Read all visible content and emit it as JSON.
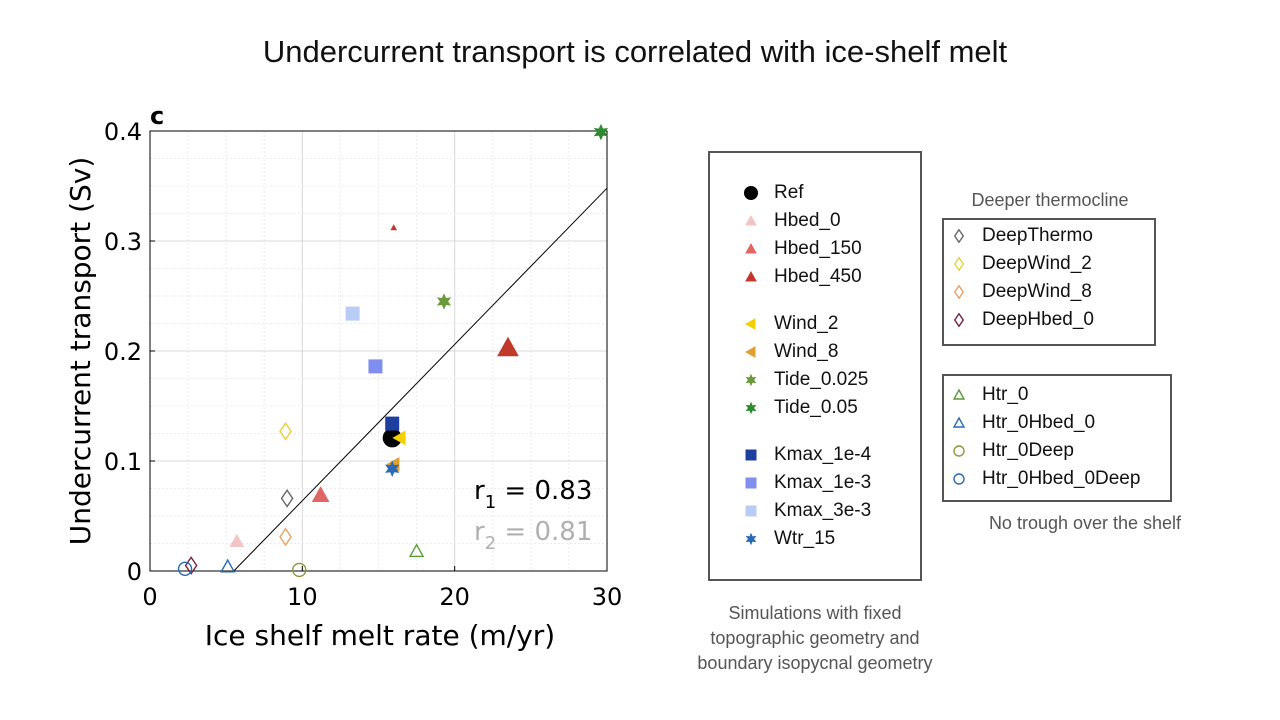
{
  "title": "Undercurrent transport is correlated with ice-shelf melt",
  "chart_data": {
    "type": "scatter",
    "panel_label": "c",
    "xlabel": "Ice shelf melt rate (m/yr)",
    "ylabel": "Undercurrent transport (Sv)",
    "xlim": [
      0,
      30
    ],
    "ylim": [
      0,
      0.4
    ],
    "xticks": [
      0,
      10,
      20,
      30
    ],
    "yticks": [
      0,
      0.1,
      0.2,
      0.3,
      0.4
    ],
    "xtick_labels": [
      "0",
      "10",
      "20",
      "30"
    ],
    "ytick_labels": [
      "0",
      "0.1",
      "0.2",
      "0.3",
      "0.4"
    ],
    "grid": true,
    "fit_line": {
      "x": [
        5.5,
        30
      ],
      "y": [
        0,
        0.348
      ]
    },
    "annotations": {
      "r1": {
        "prefix": "r",
        "sub": "1",
        "text": " = 0.83",
        "color": "#000000"
      },
      "r2": {
        "prefix": "r",
        "sub": "2",
        "text": " = 0.81",
        "color": "#b0b0b0"
      }
    },
    "series": [
      {
        "name": "Ref",
        "marker": "circle",
        "color": "#000000",
        "fill": true,
        "x": [
          15.9
        ],
        "y": [
          0.121
        ]
      },
      {
        "name": "Hbed_0",
        "marker": "triangle",
        "color": "#f2c4c4",
        "fill": true,
        "x": [
          5.7
        ],
        "y": [
          0.027
        ]
      },
      {
        "name": "Hbed_150",
        "marker": "triangle",
        "color": "#e06666",
        "fill": true,
        "x": [
          11.2
        ],
        "y": [
          0.069
        ]
      },
      {
        "name": "Hbed_450",
        "marker": "triangle",
        "color": "#c0392b",
        "fill": true,
        "x": [
          23.5,
          16.0
        ],
        "y": [
          0.203,
          0.312
        ]
      },
      {
        "name": "Wind_2",
        "marker": "triangle-left",
        "color": "#f5d000",
        "fill": true,
        "x": [
          16.4
        ],
        "y": [
          0.121
        ]
      },
      {
        "name": "Wind_8",
        "marker": "triangle-left",
        "color": "#e0a030",
        "fill": true,
        "x": [
          16.0
        ],
        "y": [
          0.097
        ]
      },
      {
        "name": "Tide_0.025",
        "marker": "star",
        "color": "#6a9a3a",
        "fill": true,
        "x": [
          19.3
        ],
        "y": [
          0.245
        ]
      },
      {
        "name": "Tide_0.05",
        "marker": "star",
        "color": "#2d8a2d",
        "fill": true,
        "x": [
          29.6
        ],
        "y": [
          0.399
        ]
      },
      {
        "name": "Kmax_1e-4",
        "marker": "square",
        "color": "#1f3f9f",
        "fill": true,
        "x": [
          15.9
        ],
        "y": [
          0.134
        ]
      },
      {
        "name": "Kmax_1e-3",
        "marker": "square",
        "color": "#7f8fef",
        "fill": true,
        "x": [
          14.8
        ],
        "y": [
          0.186
        ]
      },
      {
        "name": "Kmax_3e-3",
        "marker": "square",
        "color": "#b8ccf5",
        "fill": true,
        "x": [
          13.3
        ],
        "y": [
          0.234
        ]
      },
      {
        "name": "Wtr_15",
        "marker": "star",
        "color": "#2a6ab5",
        "fill": true,
        "x": [
          15.9
        ],
        "y": [
          0.093
        ]
      },
      {
        "name": "DeepThermo",
        "marker": "diamond",
        "color": "#666666",
        "fill": false,
        "x": [
          9.0
        ],
        "y": [
          0.066
        ]
      },
      {
        "name": "DeepWind_2",
        "marker": "diamond",
        "color": "#e8cf40",
        "fill": false,
        "x": [
          8.9
        ],
        "y": [
          0.127
        ]
      },
      {
        "name": "DeepWind_8",
        "marker": "diamond",
        "color": "#e8a060",
        "fill": false,
        "x": [
          8.9
        ],
        "y": [
          0.031
        ]
      },
      {
        "name": "DeepHbed_0",
        "marker": "diamond",
        "color": "#7a1f3a",
        "fill": false,
        "x": [
          2.7
        ],
        "y": [
          0.005
        ]
      },
      {
        "name": "Htr_0",
        "marker": "triangle",
        "color": "#5a9a3a",
        "fill": false,
        "x": [
          17.5
        ],
        "y": [
          0.018
        ]
      },
      {
        "name": "Htr_0Hbed_0",
        "marker": "triangle",
        "color": "#2a6ab5",
        "fill": false,
        "x": [
          5.1
        ],
        "y": [
          0.004
        ]
      },
      {
        "name": "Htr_0Deep",
        "marker": "circle",
        "color": "#8a9a3a",
        "fill": false,
        "x": [
          9.8
        ],
        "y": [
          0.001
        ]
      },
      {
        "name": "Htr_0Hbed_0Deep",
        "marker": "circle",
        "color": "#2a6ab5",
        "fill": false,
        "x": [
          2.3
        ],
        "y": [
          0.002
        ]
      }
    ]
  },
  "legend": {
    "main": {
      "groups": [
        [
          "Ref",
          "Hbed_0",
          "Hbed_150",
          "Hbed_450"
        ],
        [
          "Wind_2",
          "Wind_8",
          "Tide_0.025",
          "Tide_0.05"
        ],
        [
          "Kmax_1e-4",
          "Kmax_1e-3",
          "Kmax_3e-3",
          "Wtr_15"
        ]
      ],
      "caption": [
        "Simulations with fixed",
        "topographic geometry and",
        "boundary isopycnal geometry"
      ]
    },
    "deep": {
      "title": "Deeper thermocline",
      "items": [
        "DeepThermo",
        "DeepWind_2",
        "DeepWind_8",
        "DeepHbed_0"
      ]
    },
    "trough": {
      "caption": "No trough over the shelf",
      "items": [
        "Htr_0",
        "Htr_0Hbed_0",
        "Htr_0Deep",
        "Htr_0Hbed_0Deep"
      ]
    }
  }
}
